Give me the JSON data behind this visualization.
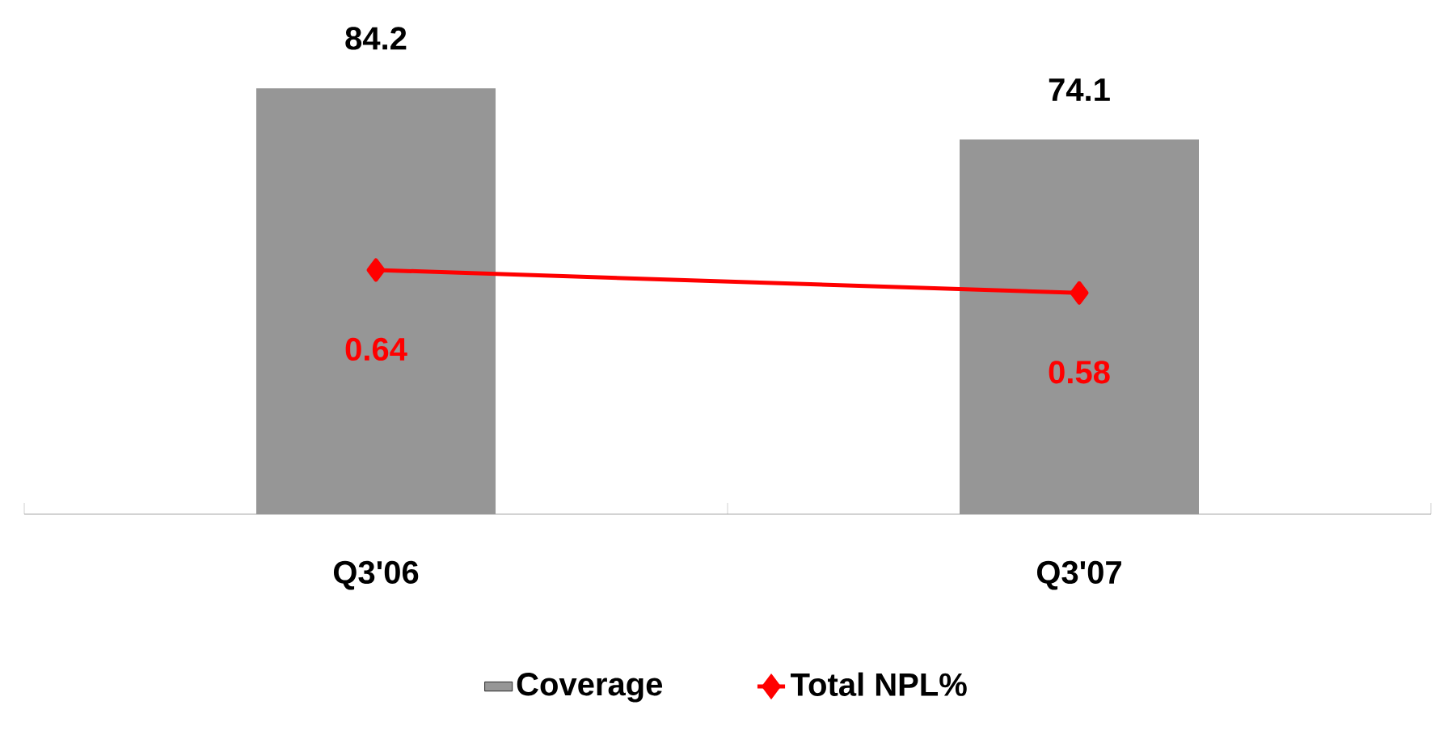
{
  "chart_data": {
    "type": "bar",
    "categories": [
      "Q3'06",
      "Q3'07"
    ],
    "series": [
      {
        "name": "Coverage",
        "color": "#969696",
        "values": [
          84.2,
          74.1
        ]
      },
      {
        "name": "Total NPL%",
        "type": "line",
        "axis": "y2",
        "color": "#ff0000",
        "values": [
          0.64,
          0.58
        ]
      }
    ],
    "data_labels": true,
    "tick_labels": "x",
    "grid": false,
    "legend": "bottom",
    "marker": "diamond"
  }
}
